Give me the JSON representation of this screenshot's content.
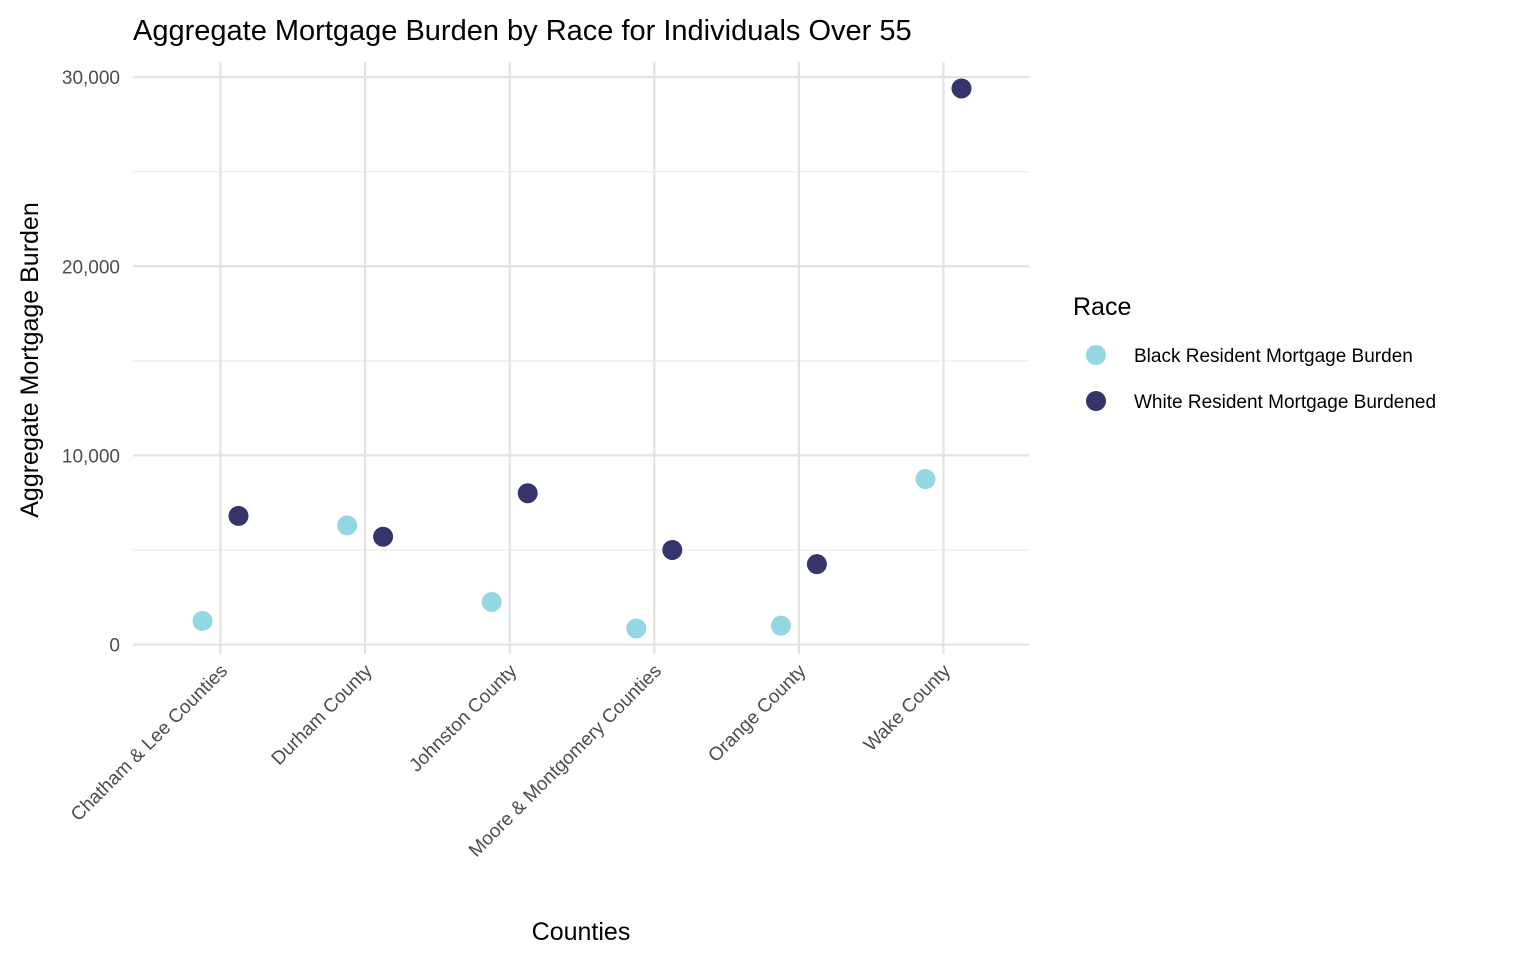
{
  "chart_data": {
    "type": "scatter",
    "title": "Aggregate Mortgage Burden by Race for Individuals Over 55",
    "xlabel": "Counties",
    "ylabel": "Aggregate Mortgage Burden",
    "categories": [
      "Chatham & Lee Counties",
      "Durham County",
      "Johnston County",
      "Moore & Montgomery Counties",
      "Orange County",
      "Wake County"
    ],
    "ylim": [
      -500,
      30800
    ],
    "yticks": [
      0,
      10000,
      20000,
      30000
    ],
    "ytick_labels": [
      "0",
      "10,000",
      "20,000",
      "30,000"
    ],
    "grid": true,
    "legend": {
      "title": "Race",
      "position": "right"
    },
    "series": [
      {
        "name": "Black Resident Mortgage Burden",
        "color": "#94d6e3",
        "values": [
          1250,
          6300,
          2250,
          850,
          1000,
          8750
        ]
      },
      {
        "name": "White Resident Mortgage Burdened",
        "color": "#363469",
        "values": [
          6800,
          5700,
          8000,
          5000,
          4250,
          29400
        ]
      }
    ]
  }
}
